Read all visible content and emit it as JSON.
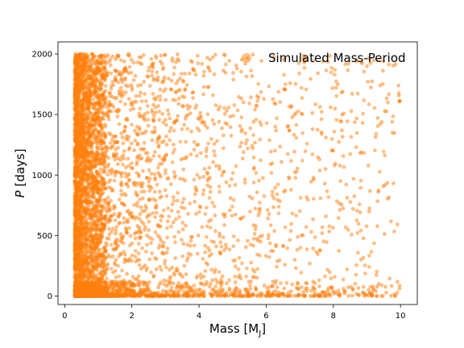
{
  "chart_data": {
    "type": "scatter",
    "title": "",
    "xlabel": "Mass [M",
    "xlabel_sub": "J",
    "xlabel_close": "]",
    "ylabel_var": "P",
    "ylabel_unit": " [days]",
    "xlim": [
      -0.2,
      10.5
    ],
    "ylim": [
      -70,
      2100
    ],
    "x_ticks": [
      0,
      2,
      4,
      6,
      8,
      10
    ],
    "y_ticks": [
      0,
      500,
      1000,
      1500,
      2000
    ],
    "grid": false,
    "legend_position": "upper right",
    "series": [
      {
        "name": "Simulated Mass-Period",
        "color": "#ff7f0e",
        "alpha": 0.5,
        "marker": "circle",
        "x_range": [
          0.3,
          10.0
        ],
        "y_range": [
          0,
          2000
        ],
        "n_points": 10000,
        "distribution": "mass log-uniform concentrated below 1 M_J, period uniform 0-2000 with dense band near 0 days"
      }
    ]
  }
}
